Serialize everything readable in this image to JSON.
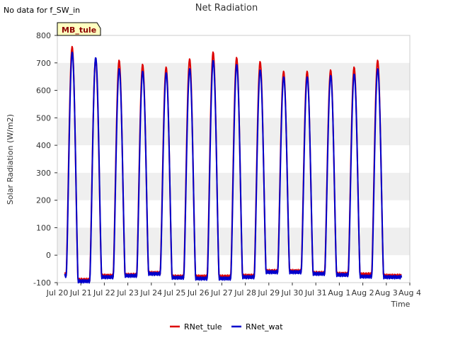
{
  "annotations": {
    "no_data": "No data for f_SW_in",
    "badge": "MB_tule"
  },
  "colors": {
    "rnet_tule": "#dd0000",
    "rnet_wat": "#0000cc",
    "band": "#efefef",
    "badge_fill": "#ffffc0"
  },
  "chart_data": {
    "type": "line",
    "title": "Net Radiation",
    "xlabel": "Time",
    "ylabel": "Solar Radiation (W/m2)",
    "ylim": [
      -100,
      800
    ],
    "yticks": [
      -100,
      0,
      100,
      200,
      300,
      400,
      500,
      600,
      700,
      800
    ],
    "xlim": [
      "Jul 20",
      "Aug 4"
    ],
    "xtick_labels": [
      "Jul 20",
      "Jul 21",
      "Jul 22",
      "Jul 23",
      "Jul 24",
      "Jul 25",
      "Jul 26",
      "Jul 27",
      "Jul 28",
      "Jul 29",
      "Jul 30",
      "Jul 31",
      "Aug 1",
      "Aug 2",
      "Aug 3",
      "Aug 4"
    ],
    "grid": "alternating horizontal bands",
    "legend_position": "bottom-center",
    "series": [
      {
        "name": "RNet_tule",
        "color": "#dd0000",
        "daily_peaks": [
          760,
          715,
          710,
          695,
          685,
          715,
          740,
          720,
          705,
          670,
          670,
          675,
          685,
          710
        ],
        "night_mins": [
          -70,
          -90,
          -75,
          -72,
          -65,
          -78,
          -78,
          -78,
          -75,
          -58,
          -58,
          -65,
          -68,
          -70,
          -75
        ]
      },
      {
        "name": "RNet_wat",
        "color": "#0000cc",
        "daily_peaks": [
          740,
          720,
          680,
          670,
          665,
          680,
          710,
          695,
          675,
          650,
          650,
          655,
          660,
          680
        ],
        "night_mins": [
          -75,
          -95,
          -80,
          -75,
          -68,
          -82,
          -85,
          -85,
          -80,
          -62,
          -62,
          -68,
          -72,
          -78,
          -80
        ]
      }
    ]
  }
}
